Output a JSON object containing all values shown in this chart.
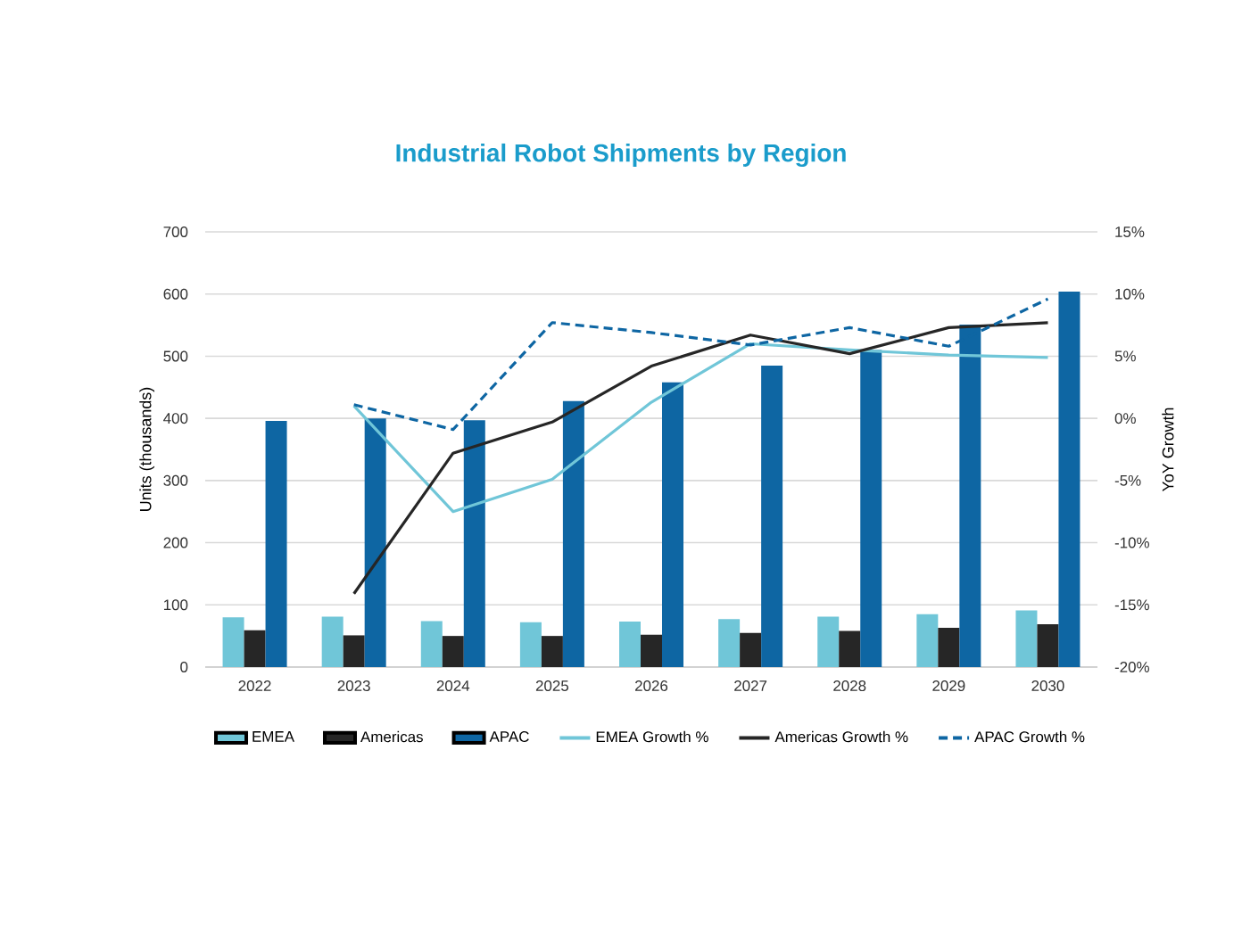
{
  "chart_data": {
    "type": "bar",
    "title": "Industrial Robot Shipments by Region",
    "categories": [
      "2022",
      "2023",
      "2024",
      "2025",
      "2026",
      "2027",
      "2028",
      "2029",
      "2030"
    ],
    "series": [
      {
        "name": "EMEA",
        "color": "#70c6d8",
        "values": [
          80,
          81,
          74,
          72,
          73,
          77,
          81,
          85,
          91
        ]
      },
      {
        "name": "Americas",
        "color": "#262626",
        "values": [
          59,
          51,
          50,
          50,
          52,
          55,
          58,
          63,
          69
        ]
      },
      {
        "name": "APAC",
        "color": "#0e66a3",
        "values": [
          396,
          400,
          397,
          428,
          458,
          485,
          510,
          551,
          604
        ]
      },
      {
        "name": "EMEA Growth %",
        "type": "line",
        "axis": "y2",
        "color": "#70c6d8",
        "line_style": "solid",
        "values": [
          null,
          1.0,
          -7.5,
          -4.9,
          1.3,
          6.0,
          5.5,
          5.1,
          4.9
        ]
      },
      {
        "name": "Americas Growth %",
        "type": "line",
        "axis": "y2",
        "color": "#262626",
        "line_style": "solid",
        "values": [
          null,
          -14.1,
          -2.8,
          -0.3,
          4.2,
          6.7,
          5.2,
          7.3,
          7.7
        ]
      },
      {
        "name": "APAC Growth %",
        "type": "line",
        "axis": "y2",
        "color": "#0e66a3",
        "line_style": "dashed",
        "values": [
          null,
          1.1,
          -0.9,
          7.7,
          6.9,
          5.9,
          7.3,
          5.8,
          9.6
        ]
      }
    ],
    "ylabel": "Units (thousands)",
    "y2label": "YoY Growth",
    "ylim": [
      0,
      700
    ],
    "yticks": [
      0,
      100,
      200,
      300,
      400,
      500,
      600,
      700
    ],
    "y2lim": [
      -20,
      15
    ],
    "y2ticks": [
      {
        "value": -20,
        "label": "-20%"
      },
      {
        "value": -15,
        "label": "-15%"
      },
      {
        "value": -10,
        "label": "-10%"
      },
      {
        "value": -5,
        "label": "-5%"
      },
      {
        "value": 0,
        "label": "0%"
      },
      {
        "value": 5,
        "label": "5%"
      },
      {
        "value": 10,
        "label": "10%"
      },
      {
        "value": 15,
        "label": "15%"
      }
    ],
    "grid": "y",
    "legend": "bottom"
  }
}
